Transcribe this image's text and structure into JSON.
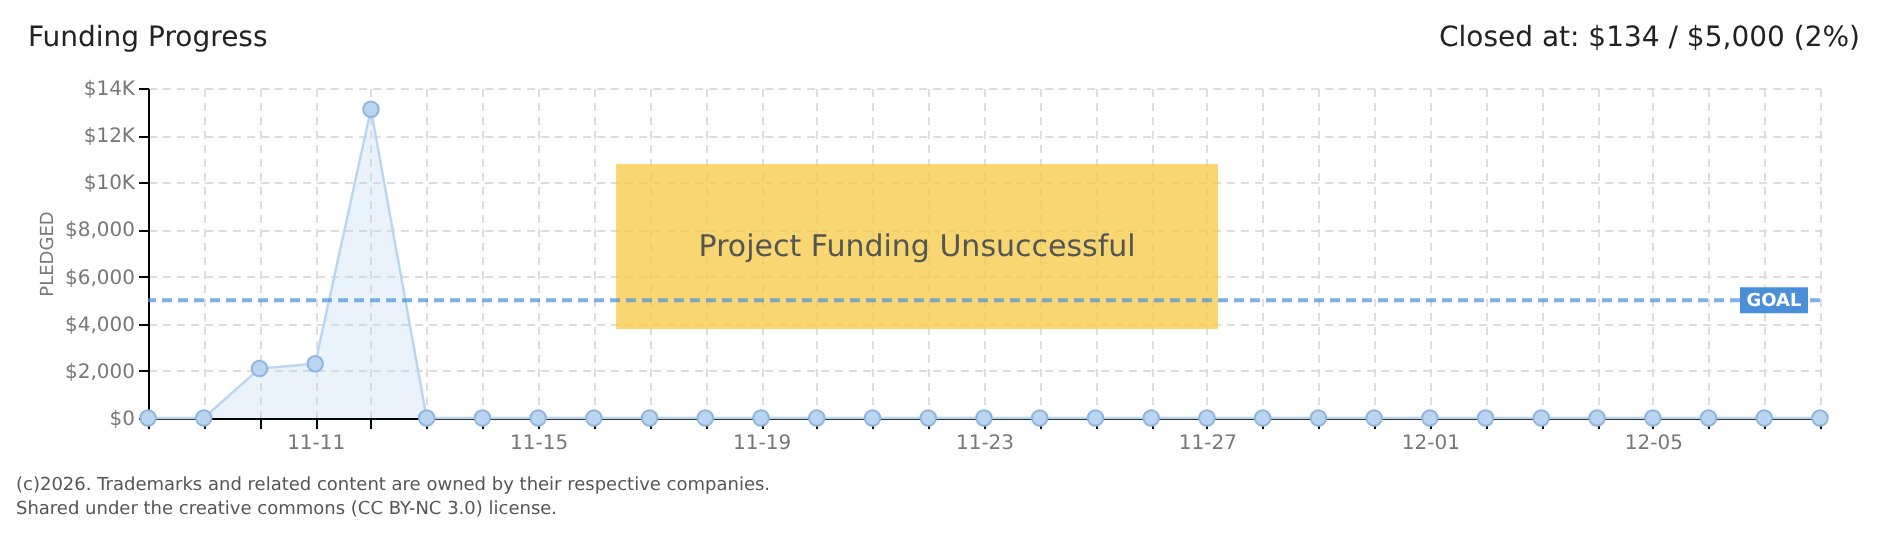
{
  "chart_data": {
    "type": "area",
    "title": "Funding Progress",
    "ylabel": "PLEDGED",
    "categories": [
      null,
      null,
      null,
      "11-11",
      null,
      null,
      null,
      "11-15",
      null,
      null,
      null,
      "11-19",
      null,
      null,
      null,
      "11-23",
      null,
      null,
      null,
      "11-27",
      null,
      null,
      null,
      "12-01",
      null,
      null,
      null,
      "12-05",
      null,
      null,
      null
    ],
    "series": [
      {
        "color": "#b9d5f2",
        "values": [
          0,
          0,
          2100,
          2300,
          13100,
          0,
          0,
          0,
          0,
          0,
          0,
          0,
          0,
          0,
          0,
          0,
          0,
          0,
          0,
          0,
          0,
          0,
          0,
          0,
          0,
          0,
          0,
          0,
          0,
          0,
          0
        ]
      }
    ],
    "ylim": [
      0,
      14000
    ],
    "yticks": [
      {
        "value": 0,
        "label": "$0"
      },
      {
        "value": 2000,
        "label": "$2,000"
      },
      {
        "value": 4000,
        "label": "$4,000"
      },
      {
        "value": 6000,
        "label": "$6,000"
      },
      {
        "value": 8000,
        "label": "$8,000"
      },
      {
        "value": 10000,
        "label": "$10K"
      },
      {
        "value": 12000,
        "label": "$12K"
      },
      {
        "value": 14000,
        "label": "$14K"
      }
    ],
    "ref_lines": [
      {
        "axis": "y",
        "value": 5000,
        "label": "GOAL",
        "color": "#4a90d9",
        "line_style": "dashed"
      }
    ],
    "annotations": [
      "Closed at: $134 / $5,000 (2%)",
      "Project Funding Unsuccessful",
      "(c)2026. Trademarks and related content are owned by their respective companies.",
      "Shared under the creative commons (CC BY-NC 3.0) license."
    ],
    "grid": true,
    "marker": "circle"
  }
}
